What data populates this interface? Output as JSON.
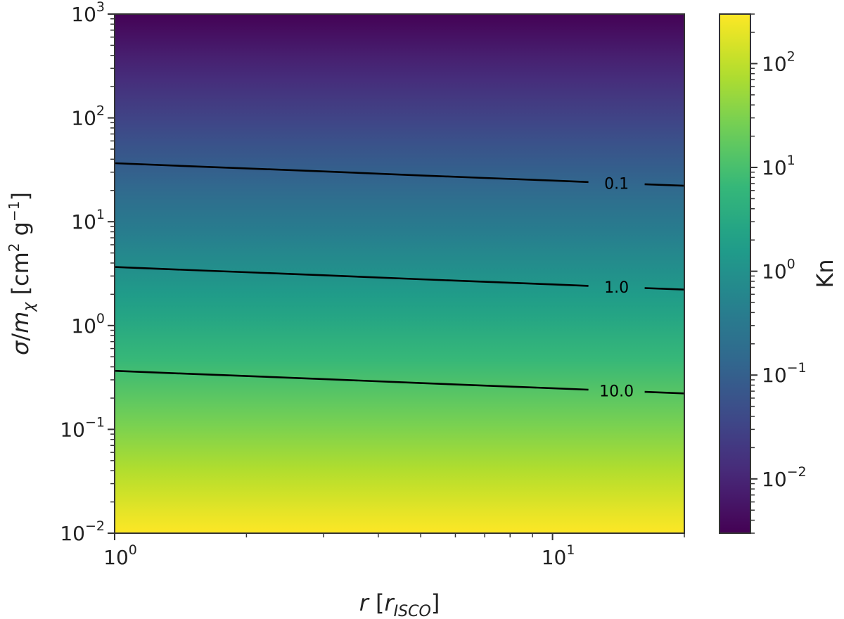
{
  "chart_data": {
    "type": "heatmap",
    "title": "",
    "xlabel": "r [r_ISCO]",
    "ylabel": "σ/m_χ [cm² g⁻¹]",
    "colorbar_label": "Kn",
    "colormap": "viridis",
    "colormap_stops": [
      "#440154",
      "#482878",
      "#3e4989",
      "#31688e",
      "#26828e",
      "#1f9e89",
      "#35b779",
      "#6ece58",
      "#b5de2b",
      "#fde725"
    ],
    "x_scale": "log",
    "y_scale": "log",
    "x_range": [
      1,
      20
    ],
    "y_range": [
      0.01,
      1000
    ],
    "colorbar_range": [
      0.003,
      300
    ],
    "x_ticks": [
      {
        "value": 1,
        "base": "10",
        "exp": "0"
      },
      {
        "value": 10,
        "base": "10",
        "exp": "1"
      }
    ],
    "y_ticks": [
      {
        "value": 0.01,
        "base": "10",
        "exp": "−2"
      },
      {
        "value": 0.1,
        "base": "10",
        "exp": "−1"
      },
      {
        "value": 1,
        "base": "10",
        "exp": "0"
      },
      {
        "value": 10,
        "base": "10",
        "exp": "1"
      },
      {
        "value": 100,
        "base": "10",
        "exp": "2"
      },
      {
        "value": 1000,
        "base": "10",
        "exp": "3"
      }
    ],
    "colorbar_ticks": [
      {
        "value": 0.01,
        "base": "10",
        "exp": "−2"
      },
      {
        "value": 0.1,
        "base": "10",
        "exp": "−1"
      },
      {
        "value": 1,
        "base": "10",
        "exp": "0"
      },
      {
        "value": 10,
        "base": "10",
        "exp": "1"
      },
      {
        "value": 100,
        "base": "10",
        "exp": "2"
      }
    ],
    "field_model": "Kn = 3.66 * r^(-0.167) / (σ/m_χ)",
    "contours": [
      {
        "level": 0.1,
        "label": "0.1",
        "label_x": 14,
        "points": [
          [
            1,
            36.6
          ],
          [
            1.5,
            34.2
          ],
          [
            2,
            32.6
          ],
          [
            3,
            30.5
          ],
          [
            5,
            27.9
          ],
          [
            7,
            26.4
          ],
          [
            10,
            24.9
          ],
          [
            14,
            23.5
          ],
          [
            20,
            22.2
          ]
        ]
      },
      {
        "level": 1.0,
        "label": "1.0",
        "label_x": 14,
        "points": [
          [
            1,
            3.66
          ],
          [
            1.5,
            3.42
          ],
          [
            2,
            3.26
          ],
          [
            3,
            3.05
          ],
          [
            5,
            2.79
          ],
          [
            7,
            2.64
          ],
          [
            10,
            2.49
          ],
          [
            14,
            2.35
          ],
          [
            20,
            2.22
          ]
        ]
      },
      {
        "level": 10.0,
        "label": "10.0",
        "label_x": 14,
        "points": [
          [
            1,
            0.366
          ],
          [
            1.5,
            0.342
          ],
          [
            2,
            0.326
          ],
          [
            3,
            0.305
          ],
          [
            5,
            0.279
          ],
          [
            7,
            0.264
          ],
          [
            10,
            0.249
          ],
          [
            14,
            0.235
          ],
          [
            20,
            0.222
          ]
        ]
      }
    ]
  }
}
